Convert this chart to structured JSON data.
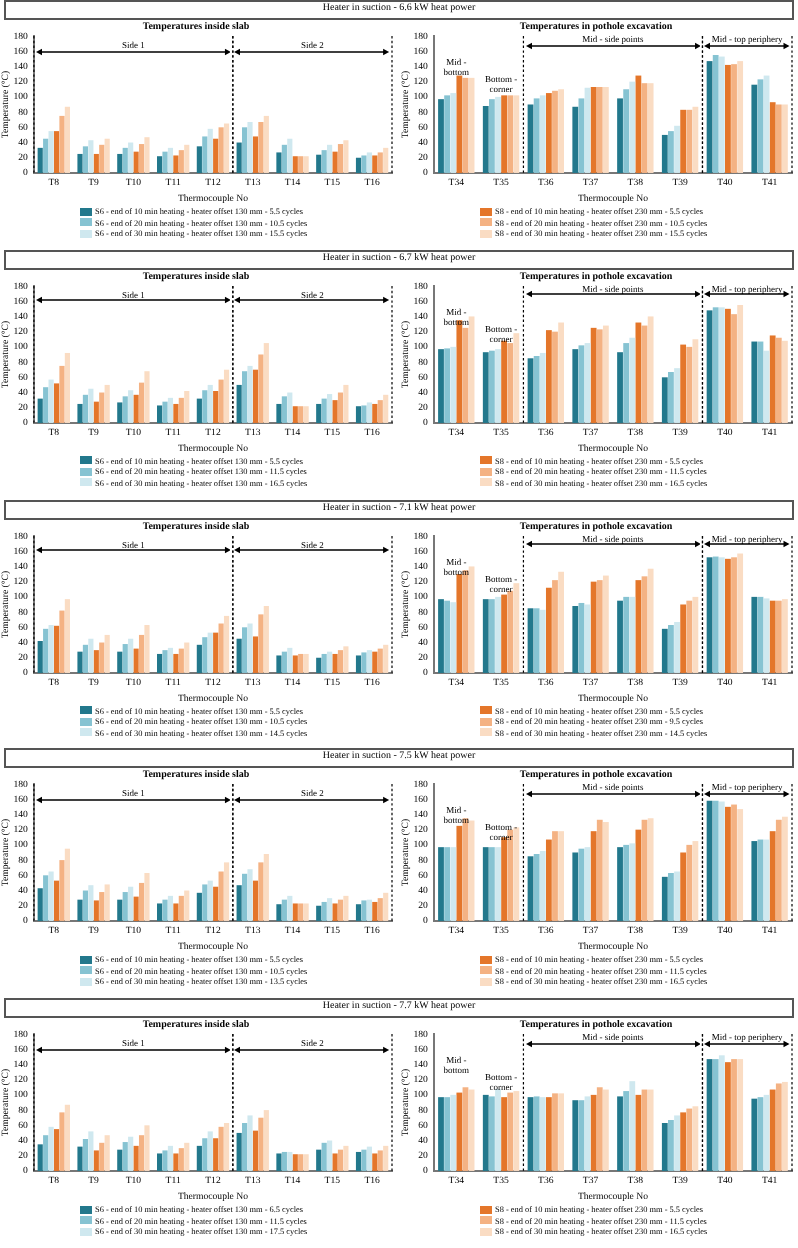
{
  "chart_data": [
    {
      "type": "bar",
      "title": "Heater in suction - 6.6 kW heat power",
      "subtitle": "Temperatures inside slab",
      "xlabel": "Thermocouple No",
      "ylabel": "Temperature (°C)",
      "categories": [
        "T8",
        "T9",
        "T10",
        "T11",
        "T12",
        "T13",
        "T14",
        "T15",
        "T16"
      ],
      "ylim": [
        0,
        180
      ],
      "yticks": [
        0,
        20,
        40,
        60,
        80,
        100,
        120,
        140,
        160,
        180
      ],
      "legend": "bottom",
      "annotations": [
        "Side 1",
        "Side 2"
      ],
      "series": [
        {
          "name": "S6 - end of 10 min heating - heater offset 130 mm - 5.5 cycles",
          "color": "#22788c",
          "values": [
            33,
            25,
            25,
            22,
            35,
            40,
            27,
            24,
            20
          ]
        },
        {
          "name": "S6 - end of 20 min heating - heater offset 130 mm - 10.5 cycles",
          "color": "#86c3d2",
          "values": [
            45,
            35,
            33,
            28,
            48,
            60,
            37,
            30,
            23
          ]
        },
        {
          "name": "S6 - end of 30 min heating - heater offset 130 mm - 15.5 cycles",
          "color": "#cfe8ef",
          "values": [
            55,
            43,
            40,
            33,
            58,
            67,
            45,
            37,
            27
          ]
        },
        {
          "color": "#e4762a",
          "values": [
            55,
            25,
            28,
            23,
            45,
            48,
            22,
            28,
            23
          ]
        },
        {
          "color": "#f4b283",
          "values": [
            75,
            37,
            38,
            30,
            60,
            67,
            22,
            38,
            27
          ]
        },
        {
          "color": "#fadcc3",
          "values": [
            87,
            45,
            47,
            37,
            65,
            75,
            22,
            43,
            33
          ]
        }
      ]
    },
    {
      "type": "bar",
      "subtitle": "Temperatures in pothole excavation",
      "xlabel": "Thermocouple No",
      "ylabel": "Temperature (°C)",
      "categories": [
        "T34",
        "T35",
        "T36",
        "T37",
        "T38",
        "T39",
        "T40",
        "T41"
      ],
      "ylim": [
        0,
        180
      ],
      "yticks": [
        0,
        20,
        40,
        60,
        80,
        100,
        120,
        140,
        160,
        180
      ],
      "legend": "bottom",
      "annotations": [
        "Mid - bottom",
        "Bottom - corner",
        "Mid - side points",
        "Mid - top periphery"
      ],
      "series": [
        {
          "color": "#22788c",
          "values": [
            97,
            88,
            90,
            87,
            98,
            50,
            147,
            116
          ]
        },
        {
          "color": "#86c3d2",
          "values": [
            102,
            97,
            98,
            98,
            110,
            55,
            155,
            123
          ]
        },
        {
          "color": "#cfe8ef",
          "values": [
            105,
            100,
            102,
            112,
            120,
            62,
            153,
            128
          ]
        },
        {
          "name": "S8 - end of 10 min heating - heater offset 230 mm - 5.5 cycles",
          "color": "#e4762a",
          "values": [
            128,
            102,
            105,
            113,
            128,
            83,
            142,
            93
          ]
        },
        {
          "name": "S8 - end of 20 min heating - heater offset 230 mm - 10.5 cycles",
          "color": "#f4b283",
          "values": [
            125,
            102,
            108,
            113,
            118,
            83,
            143,
            90
          ]
        },
        {
          "name": "S8 - end of 30 min heating - heater offset 230 mm - 15.5 cycles",
          "color": "#fadcc3",
          "values": [
            125,
            102,
            110,
            113,
            118,
            87,
            147,
            90
          ]
        }
      ]
    },
    {
      "type": "bar",
      "title": "Heater in suction - 6.7 kW heat power",
      "subtitle": "Temperatures inside slab",
      "xlabel": "Thermocouple No",
      "ylabel": "Temperature (°C)",
      "categories": [
        "T8",
        "T9",
        "T10",
        "T11",
        "T12",
        "T13",
        "T14",
        "T15",
        "T16"
      ],
      "ylim": [
        0,
        180
      ],
      "yticks": [
        0,
        20,
        40,
        60,
        80,
        100,
        120,
        140,
        160,
        180
      ],
      "legend": "bottom",
      "annotations": [
        "Side 1",
        "Side 2"
      ],
      "series": [
        {
          "name": "S6 - end of 10 min heating - heater offset 130 mm - 5.5 cycles",
          "color": "#22788c",
          "values": [
            32,
            25,
            27,
            23,
            32,
            50,
            25,
            25,
            22
          ]
        },
        {
          "name": "S6 - end of 20 min heating - heater offset 130 mm - 11.5 cycles",
          "color": "#86c3d2",
          "values": [
            47,
            37,
            35,
            28,
            43,
            68,
            35,
            32,
            23
          ]
        },
        {
          "name": "S6 - end of 30 min heating - heater offset 130 mm - 16.5 cycles",
          "color": "#cfe8ef",
          "values": [
            57,
            45,
            43,
            33,
            50,
            75,
            40,
            38,
            27
          ]
        },
        {
          "color": "#e4762a",
          "values": [
            52,
            28,
            37,
            25,
            42,
            70,
            22,
            30,
            25
          ]
        },
        {
          "color": "#f4b283",
          "values": [
            75,
            40,
            53,
            33,
            57,
            90,
            22,
            40,
            30
          ]
        },
        {
          "color": "#fadcc3",
          "values": [
            92,
            50,
            68,
            42,
            70,
            105,
            22,
            50,
            37
          ]
        }
      ]
    },
    {
      "type": "bar",
      "subtitle": "Temperatures in pothole excavation",
      "xlabel": "Thermocouple No",
      "ylabel": "Temperature (°C)",
      "categories": [
        "T34",
        "T35",
        "T36",
        "T37",
        "T38",
        "T39",
        "T40",
        "T41"
      ],
      "ylim": [
        0,
        180
      ],
      "yticks": [
        0,
        20,
        40,
        60,
        80,
        100,
        120,
        140,
        160,
        180
      ],
      "legend": "bottom",
      "annotations": [
        "Mid - bottom",
        "Bottom - corner",
        "Mid - side points",
        "Mid - top periphery"
      ],
      "series": [
        {
          "color": "#22788c",
          "values": [
            97,
            93,
            85,
            97,
            93,
            60,
            148,
            107
          ]
        },
        {
          "color": "#86c3d2",
          "values": [
            98,
            95,
            88,
            102,
            105,
            67,
            152,
            107
          ]
        },
        {
          "color": "#cfe8ef",
          "values": [
            100,
            97,
            92,
            105,
            112,
            72,
            152,
            95
          ]
        },
        {
          "name": "S8 - end of 10 min heating - heater offset 230 mm - 5.5 cycles",
          "color": "#e4762a",
          "values": [
            135,
            108,
            122,
            125,
            132,
            103,
            150,
            115
          ]
        },
        {
          "name": "S8 - end of 20 min heating - heater offset 230 mm - 11.5 cycles",
          "color": "#f4b283",
          "values": [
            125,
            105,
            120,
            123,
            128,
            100,
            143,
            112
          ]
        },
        {
          "name": "S8 - end of 30 min heating - heater offset 230 mm - 16.5 cycles",
          "color": "#fadcc3",
          "values": [
            140,
            118,
            132,
            128,
            140,
            110,
            155,
            108
          ]
        }
      ]
    },
    {
      "type": "bar",
      "title": "Heater in suction - 7.1 kW heat power",
      "subtitle": "Temperatures inside slab",
      "xlabel": "Thermocouple No",
      "ylabel": "Temperature (°C)",
      "categories": [
        "T8",
        "T9",
        "T10",
        "T11",
        "T12",
        "T13",
        "T14",
        "T15",
        "T16"
      ],
      "ylim": [
        0,
        180
      ],
      "yticks": [
        0,
        20,
        40,
        60,
        80,
        100,
        120,
        140,
        160,
        180
      ],
      "legend": "bottom",
      "annotations": [
        "Side 1",
        "Side 2"
      ],
      "series": [
        {
          "name": "S6 - end of 10 min heating - heater offset 130 mm - 5.5 cycles",
          "color": "#22788c",
          "values": [
            42,
            28,
            28,
            25,
            37,
            45,
            23,
            20,
            23
          ]
        },
        {
          "name": "S6 - end of 20 min heating - heater offset 130 mm - 10.5 cycles",
          "color": "#86c3d2",
          "values": [
            58,
            37,
            38,
            30,
            47,
            60,
            28,
            25,
            27
          ]
        },
        {
          "name": "S6 - end of 30 min heating - heater offset 130 mm - 14.5 cycles",
          "color": "#cfe8ef",
          "values": [
            63,
            45,
            45,
            33,
            53,
            65,
            33,
            28,
            30
          ]
        },
        {
          "color": "#e4762a",
          "values": [
            62,
            30,
            32,
            25,
            53,
            48,
            23,
            25,
            28
          ]
        },
        {
          "color": "#f4b283",
          "values": [
            82,
            40,
            50,
            32,
            65,
            77,
            25,
            30,
            32
          ]
        },
        {
          "color": "#fadcc3",
          "values": [
            97,
            50,
            63,
            40,
            75,
            88,
            25,
            35,
            37
          ]
        }
      ]
    },
    {
      "type": "bar",
      "subtitle": "Temperatures in pothole excavation",
      "xlabel": "Thermocouple No",
      "ylabel": "Temperature (°C)",
      "categories": [
        "T34",
        "T35",
        "T36",
        "T37",
        "T38",
        "T39",
        "T40",
        "T41"
      ],
      "ylim": [
        0,
        180
      ],
      "yticks": [
        0,
        20,
        40,
        60,
        80,
        100,
        120,
        140,
        160,
        180
      ],
      "legend": "bottom",
      "annotations": [
        "Mid - bottom",
        "Bottom - corner",
        "Mid - side points",
        "Mid - top periphery"
      ],
      "series": [
        {
          "color": "#22788c",
          "values": [
            97,
            97,
            85,
            88,
            95,
            58,
            152,
            100
          ]
        },
        {
          "color": "#86c3d2",
          "values": [
            95,
            97,
            85,
            92,
            100,
            63,
            153,
            100
          ]
        },
        {
          "color": "#cfe8ef",
          "values": [
            93,
            100,
            83,
            90,
            100,
            67,
            152,
            98
          ]
        },
        {
          "name": "S8 - end of 10 min heating - heater offset 230 mm - 5.5 cycles",
          "color": "#e4762a",
          "values": [
            130,
            103,
            112,
            120,
            122,
            90,
            150,
            95
          ]
        },
        {
          "name": "S8 - end of 20 min heating - heater offset 230 mm - 9.5 cycles",
          "color": "#f4b283",
          "values": [
            135,
            108,
            122,
            122,
            127,
            95,
            152,
            95
          ]
        },
        {
          "name": "S8 - end of 30 min heating - heater offset 230 mm - 14.5 cycles",
          "color": "#fadcc3",
          "values": [
            140,
            118,
            133,
            128,
            137,
            100,
            157,
            97
          ]
        }
      ]
    },
    {
      "type": "bar",
      "title": "Heater in suction - 7.5 kW heat power",
      "subtitle": "Temperatures inside slab",
      "xlabel": "Thermocouple No",
      "ylabel": "Temperature (°C)",
      "categories": [
        "T8",
        "T9",
        "T10",
        "T11",
        "T12",
        "T13",
        "T14",
        "T15",
        "T16"
      ],
      "ylim": [
        0,
        180
      ],
      "yticks": [
        0,
        20,
        40,
        60,
        80,
        100,
        120,
        140,
        160,
        180
      ],
      "legend": "bottom",
      "annotations": [
        "Side 1",
        "Side 2"
      ],
      "series": [
        {
          "name": "S6 - end of 10 min heating - heater offset 130 mm - 5.5 cycles",
          "color": "#22788c",
          "values": [
            43,
            28,
            28,
            23,
            37,
            47,
            22,
            20,
            22
          ]
        },
        {
          "name": "S6 - end of 20 min heating - heater offset 130 mm - 10.5 cycles",
          "color": "#86c3d2",
          "values": [
            60,
            40,
            38,
            28,
            48,
            62,
            28,
            25,
            27
          ]
        },
        {
          "name": "S6 - end of 30 min heating - heater offset 130 mm - 13.5 cycles",
          "color": "#cfe8ef",
          "values": [
            65,
            47,
            45,
            33,
            53,
            68,
            33,
            30,
            28
          ]
        },
        {
          "color": "#e4762a",
          "values": [
            53,
            27,
            32,
            23,
            45,
            53,
            23,
            23,
            25
          ]
        },
        {
          "color": "#f4b283",
          "values": [
            80,
            38,
            50,
            33,
            65,
            77,
            23,
            28,
            30
          ]
        },
        {
          "color": "#fadcc3",
          "values": [
            95,
            48,
            63,
            40,
            77,
            88,
            23,
            33,
            37
          ]
        }
      ]
    },
    {
      "type": "bar",
      "subtitle": "Temperatures in pothole excavation",
      "xlabel": "Thermocouple No",
      "ylabel": "Temperature (°C)",
      "categories": [
        "T34",
        "T35",
        "T36",
        "T37",
        "T38",
        "T39",
        "T40",
        "T41"
      ],
      "ylim": [
        0,
        180
      ],
      "yticks": [
        0,
        20,
        40,
        60,
        80,
        100,
        120,
        140,
        160,
        180
      ],
      "legend": "bottom",
      "annotations": [
        "Mid - bottom",
        "Bottom - corner",
        "Mid - side points",
        "Mid - top periphery"
      ],
      "series": [
        {
          "color": "#22788c",
          "values": [
            97,
            97,
            85,
            90,
            97,
            58,
            158,
            105
          ]
        },
        {
          "color": "#86c3d2",
          "values": [
            97,
            97,
            88,
            95,
            100,
            63,
            158,
            107
          ]
        },
        {
          "color": "#cfe8ef",
          "values": [
            97,
            97,
            92,
            97,
            102,
            65,
            157,
            107
          ]
        },
        {
          "name": "S8 - end of 10 min heating - heater offset 230 mm - 5.5 cycles",
          "color": "#e4762a",
          "values": [
            125,
            110,
            107,
            118,
            120,
            90,
            150,
            118
          ]
        },
        {
          "name": "S8 - end of 20 min heating - heater offset 230 mm - 11.5 cycles",
          "color": "#f4b283",
          "values": [
            135,
            120,
            118,
            133,
            133,
            100,
            153,
            133
          ]
        },
        {
          "name": "S8 - end of 30 min heating - heater offset 230 mm - 16.5 cycles",
          "color": "#fadcc3",
          "values": [
            132,
            123,
            118,
            130,
            135,
            105,
            147,
            137
          ]
        }
      ]
    },
    {
      "type": "bar",
      "title": "Heater in suction - 7.7 kW heat power",
      "subtitle": "Temperatures inside slab",
      "xlabel": "Thermocouple No",
      "ylabel": "Temperature (°C)",
      "categories": [
        "T8",
        "T9",
        "T10",
        "T11",
        "T12",
        "T13",
        "T14",
        "T15",
        "T16"
      ],
      "ylim": [
        0,
        180
      ],
      "yticks": [
        0,
        20,
        40,
        60,
        80,
        100,
        120,
        140,
        160,
        180
      ],
      "legend": "bottom",
      "annotations": [
        "Side 1",
        "Side 2"
      ],
      "series": [
        {
          "name": "S6 - end of 10 min heating - heater offset 130 mm - 6.5 cycles",
          "color": "#22788c",
          "values": [
            35,
            32,
            28,
            23,
            33,
            50,
            23,
            28,
            25
          ]
        },
        {
          "name": "S6 - end of 20 min heating - heater offset 130 mm - 11.5 cycles",
          "color": "#86c3d2",
          "values": [
            47,
            42,
            38,
            27,
            43,
            63,
            25,
            37,
            28
          ]
        },
        {
          "name": "S6 - end of 30 min heating - heater offset 130 mm - 17.5 cycles",
          "color": "#cfe8ef",
          "values": [
            58,
            52,
            45,
            33,
            52,
            73,
            25,
            40,
            32
          ]
        },
        {
          "color": "#e4762a",
          "values": [
            55,
            27,
            33,
            23,
            43,
            53,
            22,
            23,
            23
          ]
        },
        {
          "color": "#f4b283",
          "values": [
            77,
            37,
            47,
            30,
            58,
            70,
            22,
            28,
            27
          ]
        },
        {
          "color": "#fadcc3",
          "values": [
            87,
            47,
            60,
            37,
            63,
            80,
            22,
            33,
            33
          ]
        }
      ]
    },
    {
      "type": "bar",
      "subtitle": "Temperatures in pothole excavation",
      "xlabel": "Thermocouple No",
      "ylabel": "Temperature (°C)",
      "categories": [
        "T34",
        "T35",
        "T36",
        "T37",
        "T38",
        "T39",
        "T40",
        "T41"
      ],
      "ylim": [
        0,
        180
      ],
      "yticks": [
        0,
        20,
        40,
        60,
        80,
        100,
        120,
        140,
        160,
        180
      ],
      "legend": "bottom",
      "annotations": [
        "Mid - bottom",
        "Bottom - corner",
        "Mid - side points",
        "Mid - top periphery"
      ],
      "series": [
        {
          "color": "#22788c",
          "values": [
            97,
            100,
            97,
            93,
            98,
            63,
            147,
            95
          ]
        },
        {
          "color": "#86c3d2",
          "values": [
            97,
            98,
            98,
            93,
            105,
            67,
            147,
            97
          ]
        },
        {
          "color": "#cfe8ef",
          "values": [
            100,
            108,
            97,
            98,
            118,
            73,
            152,
            100
          ]
        },
        {
          "name": "S8 - end of 10 min heating - heater offset 230 mm - 5.5 cycles",
          "color": "#e4762a",
          "values": [
            103,
            97,
            97,
            100,
            100,
            77,
            143,
            107
          ]
        },
        {
          "name": "S8 - end of 20 min heating - heater offset 230 mm - 11.5 cycles",
          "color": "#f4b283",
          "values": [
            110,
            103,
            102,
            110,
            107,
            82,
            147,
            115
          ]
        },
        {
          "name": "S8 - end of 30 min heating - heater offset 230 mm - 16.5 cycles",
          "color": "#fadcc3",
          "values": [
            107,
            105,
            102,
            107,
            107,
            85,
            147,
            117
          ]
        }
      ]
    }
  ]
}
